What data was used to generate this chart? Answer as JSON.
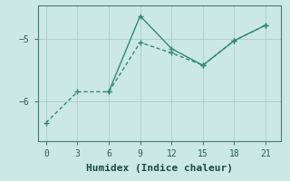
{
  "line1_x": [
    0,
    3,
    6,
    9,
    12,
    15,
    18,
    21
  ],
  "line1_y": [
    -6.35,
    -5.85,
    -5.85,
    -5.05,
    -5.22,
    -5.42,
    -5.02,
    -4.77
  ],
  "line2_x": [
    6,
    9,
    12,
    15,
    18,
    21
  ],
  "line2_y": [
    -5.85,
    -4.62,
    -5.15,
    -5.42,
    -5.02,
    -4.77
  ],
  "color": "#2e8b72",
  "bg_color": "#cce8e4",
  "grid_color": "#aacec9",
  "xlabel": "Humidex (Indice chaleur)",
  "ylim": [
    -6.65,
    -4.45
  ],
  "xlim": [
    -0.8,
    22.5
  ],
  "xticks": [
    0,
    3,
    6,
    9,
    12,
    15,
    18,
    21
  ],
  "yticks": [
    -6,
    -5
  ],
  "xlabel_fontsize": 8,
  "tick_fontsize": 7,
  "line_width": 1.0,
  "marker_size": 3
}
